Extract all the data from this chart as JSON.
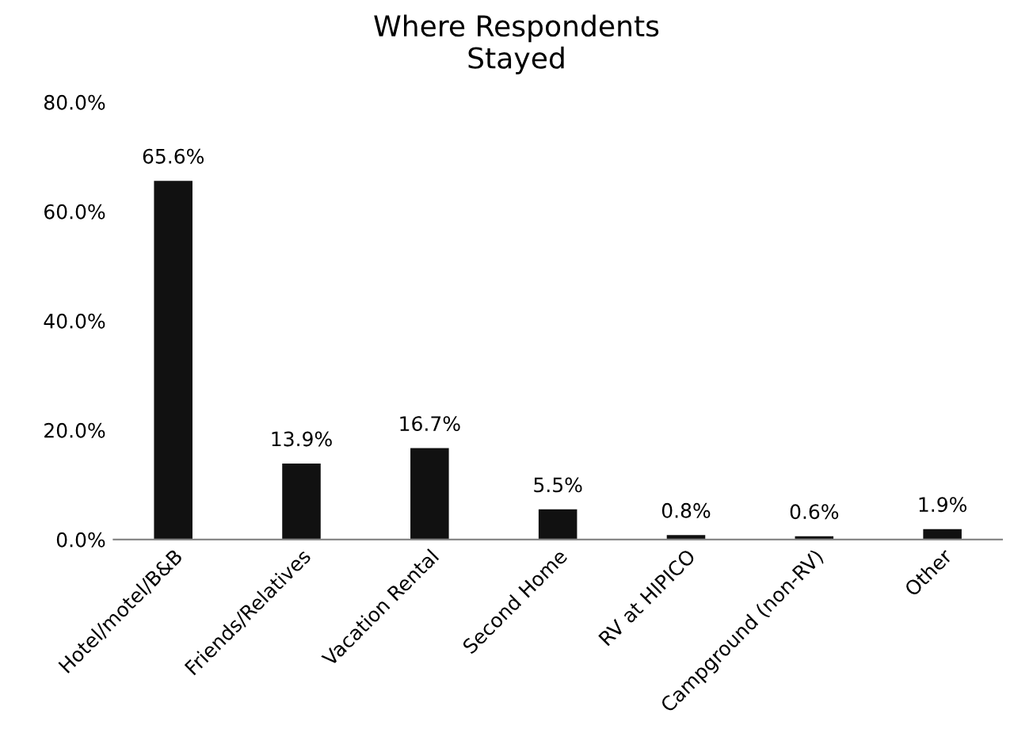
{
  "chart_data": {
    "type": "bar",
    "title": "Where Respondents\nStayed",
    "categories": [
      "Hotel/motel/B&B",
      "Friends/Relatives",
      "Vacation Rental",
      "Second Home",
      "RV at HIPICO",
      "Campground (non-RV)",
      "Other"
    ],
    "values": [
      65.6,
      13.9,
      16.7,
      5.5,
      0.8,
      0.6,
      1.9
    ],
    "value_labels": [
      "65.6%",
      "13.9%",
      "16.7%",
      "5.5%",
      "0.8%",
      "0.6%",
      "1.9%"
    ],
    "color": "#111111",
    "ylim": [
      0,
      80
    ],
    "yticks": [
      {
        "value": 0,
        "label": "0.0%"
      },
      {
        "value": 20,
        "label": "20.0%"
      },
      {
        "value": 40,
        "label": "40.0%"
      },
      {
        "value": 60,
        "label": "60.0%"
      },
      {
        "value": 80,
        "label": "80.0%"
      }
    ],
    "grid": false
  }
}
